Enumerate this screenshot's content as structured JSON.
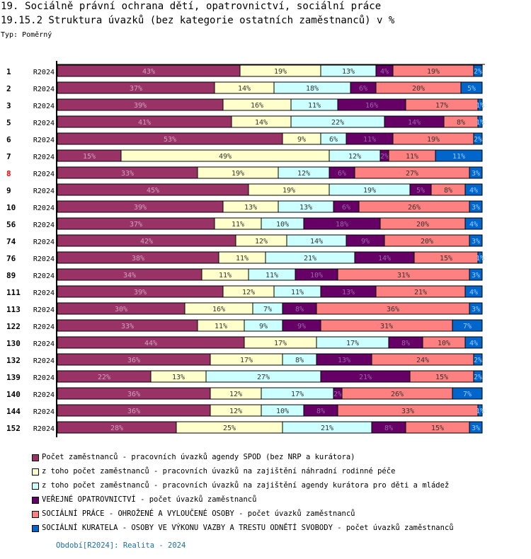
{
  "header": {
    "title": "19. Sociálně právní ochrana dětí, opatrovnictví, sociální práce",
    "subtitle": "19.15.2 Struktura úvazků (bez kategorie ostatních zaměstnanců) v %",
    "type_label": "Typ: Poměrný"
  },
  "chart_data": {
    "type": "bar",
    "orientation": "horizontal",
    "stacked": true,
    "normalized_percent": true,
    "title": "19.15.2 Struktura úvazků (bez kategorie ostatních zaměstnanců) v %",
    "xlim": [
      0,
      100
    ],
    "grid": false,
    "legend_position": "bottom",
    "categories": [
      "1",
      "2",
      "3",
      "5",
      "6",
      "7",
      "8",
      "9",
      "10",
      "56",
      "74",
      "76",
      "89",
      "111",
      "113",
      "122",
      "130",
      "132",
      "139",
      "140",
      "144",
      "152"
    ],
    "highlighted_category": "8",
    "period_label": "R2024",
    "series": [
      {
        "name": "Počet zaměstnanců - pracovních úvazků agendy SPOD (bez NRP a kurátora)",
        "color": "#993366",
        "values": [
          43,
          37,
          39,
          41,
          53,
          15,
          33,
          45,
          39,
          37,
          42,
          38,
          34,
          39,
          30,
          33,
          44,
          36,
          22,
          36,
          36,
          28
        ]
      },
      {
        "name": "z toho počet zaměstnanců - pracovních úvazků na zajištění náhradní rodinné péče",
        "color": "#ffffcc",
        "values": [
          19,
          14,
          16,
          14,
          9,
          49,
          19,
          19,
          13,
          11,
          12,
          11,
          11,
          12,
          16,
          11,
          17,
          17,
          13,
          12,
          12,
          25
        ]
      },
      {
        "name": "z toho počet zaměstnanců - pracovních úvazků na zajištění agendy kurátora pro děti a mládež",
        "color": "#ccffff",
        "values": [
          13,
          18,
          11,
          22,
          6,
          12,
          12,
          19,
          13,
          10,
          14,
          21,
          11,
          11,
          7,
          9,
          17,
          8,
          27,
          17,
          10,
          21
        ]
      },
      {
        "name": "VEŘEJNÉ OPATROVNICTVÍ - počet úvazků zaměstnanců",
        "color": "#660066",
        "values": [
          4,
          6,
          16,
          14,
          11,
          2,
          6,
          5,
          6,
          18,
          9,
          14,
          10,
          13,
          8,
          9,
          8,
          13,
          21,
          2,
          8,
          8
        ]
      },
      {
        "name": "SOCIÁLNÍ PRÁCE - OHROŽENÉ A VYLOUČENÉ OSOBY - počet úvazků zaměstnanců",
        "color": "#ff8080",
        "values": [
          19,
          20,
          17,
          8,
          19,
          11,
          27,
          8,
          26,
          20,
          20,
          15,
          31,
          21,
          36,
          31,
          10,
          24,
          15,
          26,
          33,
          15
        ]
      },
      {
        "name": "SOCIÁLNÍ KURATELA - OSOBY VE VÝKONU VAZBY A TRESTU ODNĚTÍ SVOBODY - počet úvazků zaměstnanců",
        "color": "#0066cc",
        "values": [
          2,
          5,
          1,
          1,
          2,
          11,
          3,
          4,
          3,
          4,
          3,
          1,
          3,
          4,
          3,
          7,
          4,
          2,
          2,
          7,
          1,
          3
        ]
      }
    ]
  },
  "footer": {
    "period_note": "Období[R2024]: Realita - 2024"
  }
}
